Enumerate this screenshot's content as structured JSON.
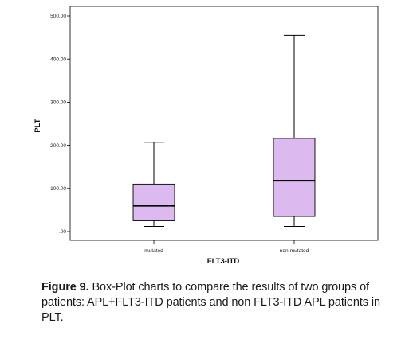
{
  "chart_data": {
    "type": "box",
    "xlabel": "FLT3-ITD",
    "ylabel": "PLT",
    "ylim": [
      0,
      500
    ],
    "yticks": [
      0,
      100,
      200,
      300,
      400,
      500
    ],
    "ytick_labels": [
      ".00",
      "100.00",
      "200.00",
      "300.00",
      "400.00",
      "500.00"
    ],
    "categories": [
      "mutated",
      "non-mutated"
    ],
    "boxes": [
      {
        "category": "mutated",
        "min": 12,
        "q1": 25,
        "median": 60,
        "q3": 110,
        "max": 207
      },
      {
        "category": "non-mutated",
        "min": 12,
        "q1": 35,
        "median": 118,
        "q3": 216,
        "max": 455
      }
    ],
    "box_fill": "#dcbaf0",
    "box_stroke": "#000000",
    "grid": false,
    "legend": "none"
  },
  "caption": {
    "label": "Figure 9.",
    "text": " Box-Plot charts to compare the results of two groups of patients: APL+FLT3-ITD patients and non FLT3-ITD APL patients in PLT."
  }
}
